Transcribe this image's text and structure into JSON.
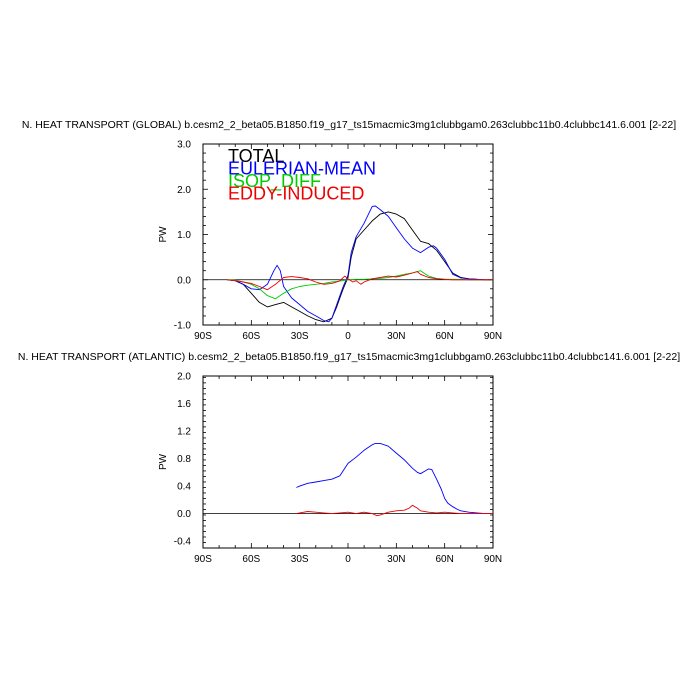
{
  "chart_data": [
    {
      "type": "line",
      "title": "N. HEAT TRANSPORT (GLOBAL) b.cesm2_2_beta05.B1850.f19_g17_ts15macmic3mg1clubbgam0.263clubbc11b0.4clubbc141.6.001 [2-22]",
      "ylabel": "PW",
      "xlim": [
        -90,
        90
      ],
      "ylim": [
        -1.0,
        3.0
      ],
      "xticks": [
        {
          "v": -90,
          "label": "90S"
        },
        {
          "v": -60,
          "label": "60S"
        },
        {
          "v": -30,
          "label": "30S"
        },
        {
          "v": 0,
          "label": "0"
        },
        {
          "v": 30,
          "label": "30N"
        },
        {
          "v": 60,
          "label": "60N"
        },
        {
          "v": 90,
          "label": "90N"
        }
      ],
      "yticks": [
        {
          "v": -1.0,
          "label": "-1.0"
        },
        {
          "v": 0.0,
          "label": "0.0"
        },
        {
          "v": 1.0,
          "label": "1.0"
        },
        {
          "v": 2.0,
          "label": "2.0"
        },
        {
          "v": 3.0,
          "label": "3.0"
        }
      ],
      "legend_placement": "top-left",
      "series": [
        {
          "name": "TOTAL",
          "color": "#000000",
          "x": [
            -75,
            -70,
            -65,
            -60,
            -55,
            -50,
            -45,
            -40,
            -35,
            -30,
            -25,
            -20,
            -15,
            -10,
            -7,
            -5,
            -3,
            0,
            2,
            5,
            10,
            15,
            20,
            25,
            30,
            35,
            40,
            45,
            50,
            55,
            60,
            65,
            70,
            75,
            80,
            85,
            90
          ],
          "y": [
            0,
            -0.02,
            -0.1,
            -0.3,
            -0.5,
            -0.6,
            -0.55,
            -0.5,
            -0.6,
            -0.7,
            -0.8,
            -0.88,
            -0.93,
            -0.85,
            -0.6,
            -0.4,
            -0.2,
            0.05,
            0.5,
            0.9,
            1.1,
            1.3,
            1.45,
            1.5,
            1.45,
            1.35,
            1.1,
            0.85,
            0.8,
            0.65,
            0.4,
            0.15,
            0.05,
            0.02,
            0.01,
            0.0,
            0.0
          ]
        },
        {
          "name": "EULERIAN-MEAN",
          "color": "#0000ff",
          "x": [
            -75,
            -70,
            -65,
            -60,
            -55,
            -50,
            -46,
            -44,
            -42,
            -40,
            -35,
            -30,
            -25,
            -20,
            -15,
            -12,
            -10,
            -7,
            -5,
            -3,
            0,
            2,
            5,
            10,
            15,
            17,
            20,
            25,
            30,
            35,
            40,
            45,
            50,
            53,
            55,
            60,
            65,
            70,
            75,
            80,
            85,
            90
          ],
          "y": [
            0,
            -0.02,
            -0.1,
            -0.2,
            -0.22,
            -0.1,
            0.2,
            0.32,
            0.2,
            -0.15,
            -0.4,
            -0.55,
            -0.7,
            -0.8,
            -0.9,
            -0.93,
            -0.85,
            -0.55,
            -0.35,
            -0.15,
            0.1,
            0.6,
            0.95,
            1.25,
            1.62,
            1.63,
            1.55,
            1.4,
            1.15,
            0.9,
            0.7,
            0.6,
            0.72,
            0.75,
            0.7,
            0.45,
            0.12,
            0.04,
            0.02,
            0.01,
            0.0,
            0.0
          ]
        },
        {
          "name": "ISOP_DIFF",
          "color": "#00cc00",
          "x": [
            -75,
            -70,
            -65,
            -60,
            -55,
            -50,
            -45,
            -40,
            -35,
            -30,
            -25,
            -20,
            -15,
            -10,
            -5,
            0,
            5,
            10,
            15,
            20,
            25,
            30,
            35,
            40,
            45,
            50,
            55,
            60,
            65,
            70,
            75,
            80,
            85,
            90
          ],
          "y": [
            0,
            -0.01,
            -0.05,
            -0.1,
            -0.2,
            -0.35,
            -0.42,
            -0.3,
            -0.2,
            -0.15,
            -0.12,
            -0.1,
            -0.08,
            -0.05,
            -0.03,
            0,
            0.01,
            0.01,
            0.02,
            0.03,
            0.05,
            0.08,
            0.12,
            0.15,
            0.2,
            0.08,
            0.03,
            0.01,
            0.01,
            0.01,
            0,
            0,
            0,
            0
          ]
        },
        {
          "name": "EDDY-INDUCED",
          "color": "#ee0000",
          "x": [
            -75,
            -70,
            -65,
            -60,
            -55,
            -50,
            -45,
            -40,
            -35,
            -30,
            -25,
            -20,
            -15,
            -10,
            -7,
            -5,
            -2,
            0,
            3,
            5,
            8,
            10,
            15,
            20,
            25,
            30,
            35,
            40,
            43,
            45,
            50,
            55,
            60,
            65,
            70,
            75,
            80,
            85,
            90
          ],
          "y": [
            0,
            -0.02,
            -0.05,
            -0.08,
            -0.15,
            -0.22,
            -0.1,
            0.05,
            0.07,
            0.05,
            0.02,
            -0.05,
            -0.1,
            -0.08,
            -0.05,
            -0.02,
            0.08,
            0.02,
            -0.05,
            -0.02,
            -0.1,
            -0.05,
            0.02,
            0.05,
            0.08,
            0.06,
            0.1,
            0.15,
            0.18,
            0.12,
            0.05,
            0.02,
            0.01,
            0,
            0,
            0,
            0,
            0,
            0
          ]
        }
      ]
    },
    {
      "type": "line",
      "title": "N. HEAT TRANSPORT (ATLANTIC) b.cesm2_2_beta05.B1850.f19_g17_ts15macmic3mg1clubbgam0.263clubbc11b0.4clubbc141.6.001 [2-22]",
      "ylabel": "PW",
      "xlim": [
        -90,
        90
      ],
      "ylim": [
        -0.5,
        2.0
      ],
      "xticks": [
        {
          "v": -90,
          "label": "90S"
        },
        {
          "v": -60,
          "label": "60S"
        },
        {
          "v": -30,
          "label": "30S"
        },
        {
          "v": 0,
          "label": "0"
        },
        {
          "v": 30,
          "label": "30N"
        },
        {
          "v": 60,
          "label": "60N"
        },
        {
          "v": 90,
          "label": "90N"
        }
      ],
      "yticks": [
        {
          "v": -0.4,
          "label": "-0.4"
        },
        {
          "v": 0.0,
          "label": "0.0"
        },
        {
          "v": 0.4,
          "label": "0.4"
        },
        {
          "v": 0.8,
          "label": "0.8"
        },
        {
          "v": 1.2,
          "label": "1.2"
        },
        {
          "v": 1.6,
          "label": "1.6"
        },
        {
          "v": 2.0,
          "label": "2.0"
        }
      ],
      "series": [
        {
          "name": "EULERIAN-MEAN",
          "color": "#0000ff",
          "x": [
            -32,
            -30,
            -25,
            -20,
            -15,
            -10,
            -5,
            0,
            5,
            10,
            15,
            17,
            20,
            25,
            30,
            35,
            40,
            43,
            45,
            48,
            50,
            52,
            55,
            58,
            60,
            62,
            65,
            68,
            70,
            75,
            80,
            85,
            90
          ],
          "y": [
            0.38,
            0.4,
            0.44,
            0.46,
            0.48,
            0.5,
            0.55,
            0.73,
            0.82,
            0.92,
            1.0,
            1.02,
            1.02,
            0.98,
            0.88,
            0.78,
            0.66,
            0.6,
            0.58,
            0.62,
            0.65,
            0.64,
            0.5,
            0.35,
            0.22,
            0.15,
            0.1,
            0.06,
            0.04,
            0.02,
            0.01,
            0.0,
            0.0
          ]
        },
        {
          "name": "EDDY-INDUCED",
          "color": "#ee0000",
          "x": [
            -32,
            -30,
            -25,
            -20,
            -15,
            -10,
            -5,
            0,
            5,
            10,
            15,
            18,
            20,
            25,
            30,
            35,
            38,
            40,
            43,
            45,
            50,
            55,
            60,
            65,
            70,
            75,
            80,
            85,
            90
          ],
          "y": [
            0,
            0.01,
            0.03,
            0.02,
            0.01,
            0.0,
            0.01,
            0.02,
            0.0,
            0.02,
            0.0,
            -0.03,
            -0.02,
            0.02,
            0.04,
            0.05,
            0.08,
            0.12,
            0.08,
            0.04,
            0.02,
            0.01,
            0.02,
            0.01,
            0.0,
            0,
            0,
            0,
            0
          ]
        }
      ]
    }
  ]
}
